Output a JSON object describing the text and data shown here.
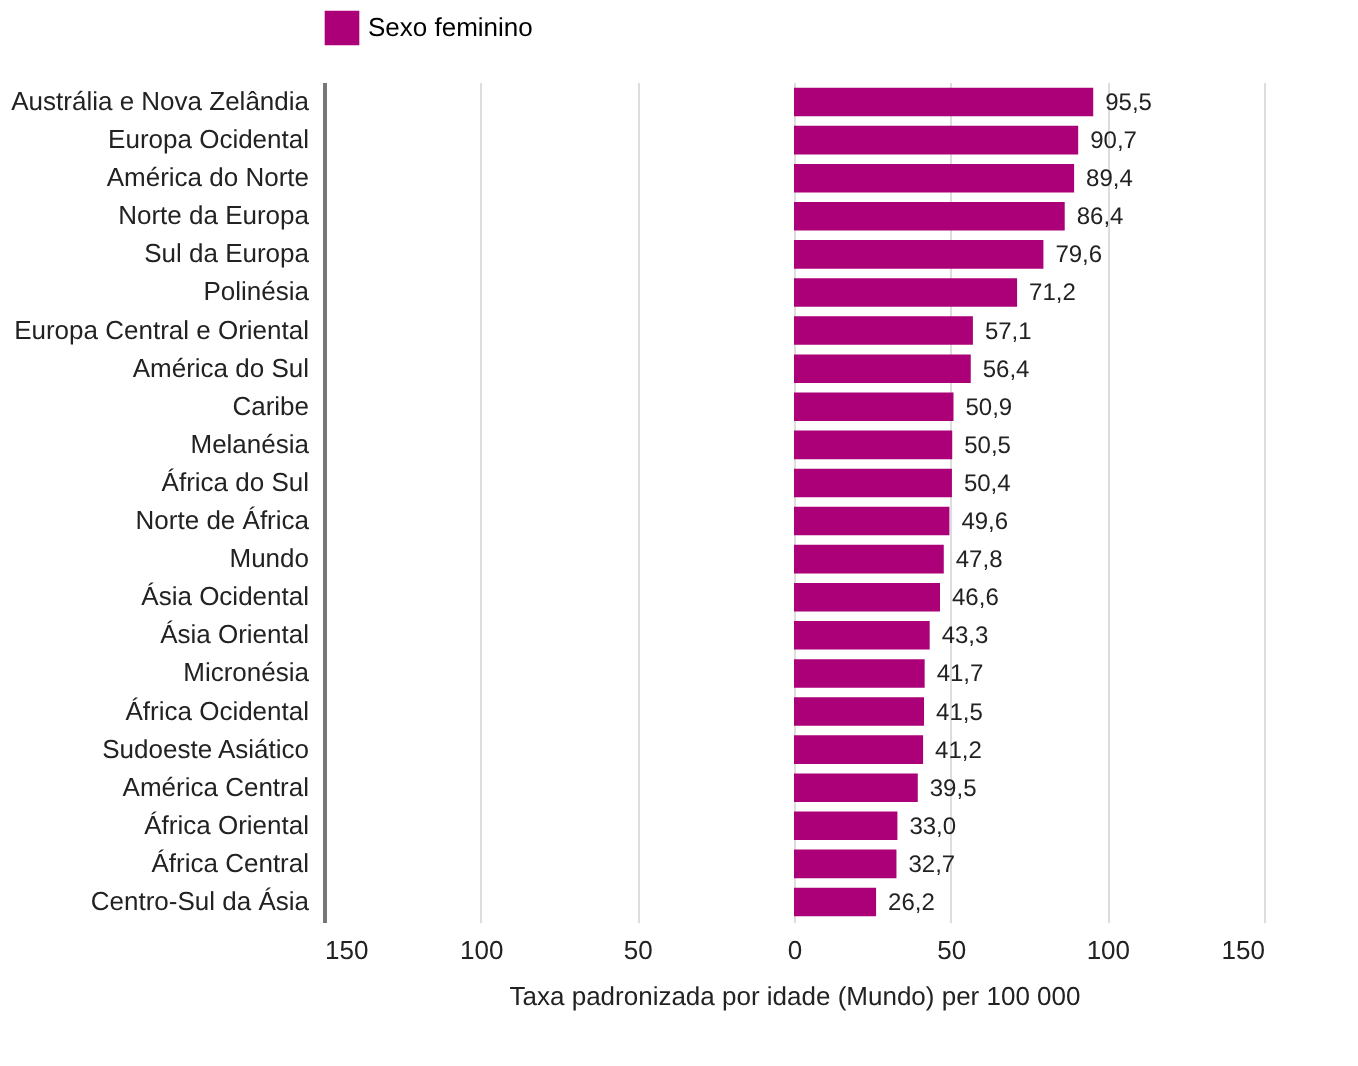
{
  "chart_data": {
    "type": "bar",
    "orientation": "horizontal",
    "xlabel": "Taxa padronizada por idade (Mundo) per 100 000",
    "categories": [
      "Austrália e Nova Zelândia",
      "Europa Ocidental",
      "América do Norte",
      "Norte da Europa",
      "Sul da Europa",
      "Polinésia",
      "Europa Central e Oriental",
      "América do Sul",
      "Caribe",
      "Melanésia",
      "África do Sul",
      "Norte de África",
      "Mundo",
      "Ásia Ocidental",
      "Ásia Oriental",
      "Micronésia",
      "África Ocidental",
      "Sudoeste Asiático",
      "América Central",
      "África Oriental",
      "África Central",
      "Centro-Sul da Ásia"
    ],
    "series": [
      {
        "name": "Sexo feminino",
        "color": "#ab0078",
        "values": [
          95.5,
          90.7,
          89.4,
          86.4,
          79.6,
          71.2,
          57.1,
          56.4,
          50.9,
          50.5,
          50.4,
          49.6,
          47.8,
          46.6,
          43.3,
          41.7,
          41.5,
          41.2,
          39.5,
          33.0,
          32.7,
          26.2
        ],
        "value_labels": [
          "95,5",
          "90,7",
          "89,4",
          "86,4",
          "79,6",
          "71,2",
          "57,1",
          "56,4",
          "50,9",
          "50,5",
          "50,4",
          "49,6",
          "47,8",
          "46,6",
          "43,3",
          "41,7",
          "41,5",
          "41,2",
          "39,5",
          "33,0",
          "32,7",
          "26,2"
        ]
      }
    ],
    "xlim": [
      -150,
      150
    ],
    "xticks": [
      {
        "value": -150,
        "label": "150"
      },
      {
        "value": -100,
        "label": "100"
      },
      {
        "value": -50,
        "label": "50"
      },
      0,
      50,
      100,
      150
    ],
    "grid": "x",
    "legend": "top"
  }
}
